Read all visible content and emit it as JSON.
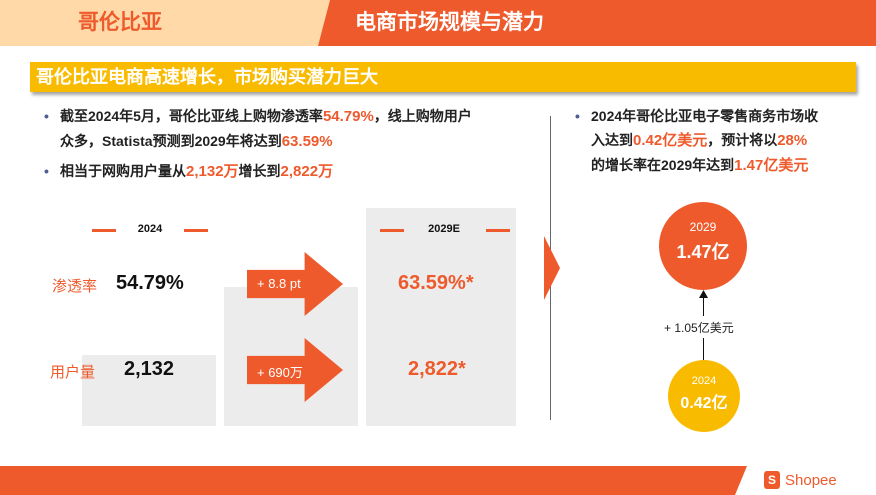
{
  "header": {
    "left_title": "哥伦比亚",
    "right_title": "电商市场规模与潜力"
  },
  "banner": {
    "text": "哥伦比亚电商高速增长，市场购买潜力巨大"
  },
  "bullets_left": {
    "b1_part1": "截至2024年5月，哥伦比亚线上购物渗透率",
    "b1_hl1": "54.79%",
    "b1_part2": "，线上购物用户",
    "b1_part3": "众多，Statista预测到2029年将达到",
    "b1_hl2": "63.59%",
    "b2_part1": "相当于网购用户量从",
    "b2_hl1": "2,132万",
    "b2_part2": "增长到",
    "b2_hl2": "2,822万"
  },
  "comparison": {
    "year_current": "2024",
    "year_future": "2029E",
    "row1_label": "渗透率",
    "row2_label": "用户量",
    "row1_current": "54.79%",
    "row2_current": "2,132",
    "row1_delta": "+ 8.8 pt",
    "row2_delta": "+ 690万",
    "row1_future": "63.59%*",
    "row2_future": "2,822*"
  },
  "bullets_right": {
    "b1_part1": "2024年哥伦比亚电子零售商务市场收",
    "b1_part2": "入达到",
    "b1_hl1": "0.42亿美元",
    "b1_part3": "，预计将以",
    "b1_hl2": "28%",
    "b1_part4": "的增长率在2029年达到",
    "b1_hl3": "1.47亿美元"
  },
  "market": {
    "future_year": "2029",
    "future_value": "1.47亿",
    "current_year": "2024",
    "current_value": "0.42亿",
    "growth_label": "+ 1.05亿美元"
  },
  "footer": {
    "brand": "Shopee"
  },
  "colors": {
    "orange": "#ee5a2c",
    "yellow": "#f9bb00",
    "peach": "#ffd9a8",
    "grey_box": "#ececec"
  }
}
